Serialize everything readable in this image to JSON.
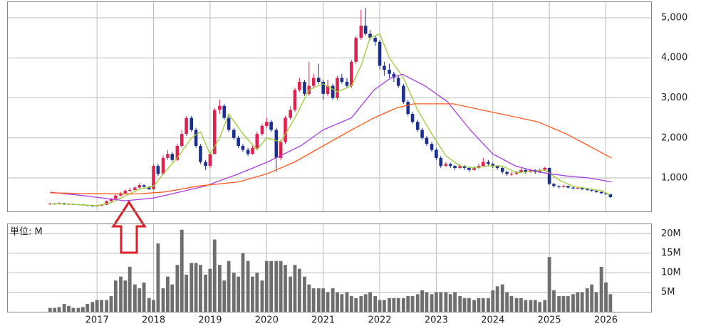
{
  "chart_data": [
    {
      "type": "candlestick",
      "xlim": [
        2015.41,
        2026.8
      ],
      "xticks": [
        2017,
        2018,
        2019,
        2020,
        2021,
        2022,
        2023,
        2024,
        2025,
        2026
      ],
      "ylim": [
        165,
        5408
      ],
      "yticks": [
        {
          "value": 1000,
          "label": "1,000"
        },
        {
          "value": 2000,
          "label": "2,000"
        },
        {
          "value": 3000,
          "label": "3,000"
        },
        {
          "value": 4000,
          "label": "4,000"
        },
        {
          "value": 5000,
          "label": "5,000"
        }
      ],
      "grid": true,
      "up_color": "#e0204f",
      "down_color": "#1c2f8f",
      "x": [
        2016.17,
        2016.25,
        2016.33,
        2016.42,
        2016.5,
        2016.58,
        2016.67,
        2016.75,
        2016.83,
        2016.92,
        2017.0,
        2017.08,
        2017.17,
        2017.25,
        2017.33,
        2017.42,
        2017.5,
        2017.58,
        2017.67,
        2017.75,
        2017.83,
        2017.92,
        2018.0,
        2018.08,
        2018.17,
        2018.25,
        2018.33,
        2018.42,
        2018.5,
        2018.58,
        2018.67,
        2018.75,
        2018.83,
        2018.92,
        2019.0,
        2019.08,
        2019.17,
        2019.25,
        2019.33,
        2019.42,
        2019.5,
        2019.58,
        2019.67,
        2019.75,
        2019.83,
        2019.92,
        2020.0,
        2020.08,
        2020.17,
        2020.25,
        2020.33,
        2020.42,
        2020.5,
        2020.58,
        2020.67,
        2020.75,
        2020.83,
        2020.92,
        2021.0,
        2021.08,
        2021.17,
        2021.25,
        2021.33,
        2021.42,
        2021.5,
        2021.58,
        2021.67,
        2021.75,
        2021.83,
        2021.92,
        2022.0,
        2022.08,
        2022.17,
        2022.25,
        2022.33,
        2022.42,
        2022.5,
        2022.58,
        2022.67,
        2022.75,
        2022.83,
        2022.92,
        2023.0,
        2023.08,
        2023.17,
        2023.25,
        2023.33,
        2023.42,
        2023.5,
        2023.58,
        2023.67,
        2023.75,
        2023.83,
        2023.92,
        2024.0,
        2024.08,
        2024.17,
        2024.25,
        2024.33,
        2024.42,
        2024.5,
        2024.58,
        2024.67,
        2024.75,
        2024.83,
        2024.92,
        2025.0,
        2025.08,
        2025.17,
        2025.25,
        2025.33,
        2025.42,
        2025.5,
        2025.58,
        2025.67,
        2025.75,
        2025.83,
        2025.92,
        2026.0,
        2026.08
      ],
      "ohlc": [
        [
          350,
          380,
          330,
          360
        ],
        [
          360,
          375,
          335,
          350
        ],
        [
          350,
          390,
          345,
          370
        ],
        [
          370,
          375,
          330,
          340
        ],
        [
          340,
          365,
          330,
          350
        ],
        [
          350,
          355,
          320,
          330
        ],
        [
          330,
          350,
          320,
          340
        ],
        [
          340,
          345,
          310,
          320
        ],
        [
          320,
          330,
          300,
          310
        ],
        [
          310,
          315,
          285,
          300
        ],
        [
          300,
          320,
          290,
          310
        ],
        [
          310,
          345,
          300,
          330
        ],
        [
          330,
          440,
          325,
          420
        ],
        [
          420,
          500,
          400,
          480
        ],
        [
          480,
          580,
          470,
          560
        ],
        [
          560,
          650,
          540,
          620
        ],
        [
          620,
          710,
          600,
          680
        ],
        [
          680,
          760,
          650,
          700
        ],
        [
          700,
          800,
          690,
          760
        ],
        [
          760,
          870,
          740,
          820
        ],
        [
          820,
          840,
          760,
          780
        ],
        [
          780,
          800,
          700,
          720
        ],
        [
          720,
          1350,
          710,
          1300
        ],
        [
          1300,
          1350,
          1050,
          1100
        ],
        [
          1100,
          1560,
          1080,
          1500
        ],
        [
          1500,
          1700,
          1450,
          1600
        ],
        [
          1600,
          1650,
          1400,
          1450
        ],
        [
          1450,
          1850,
          1420,
          1800
        ],
        [
          1800,
          2200,
          1750,
          2100
        ],
        [
          2100,
          2550,
          2050,
          2500
        ],
        [
          2500,
          2550,
          2150,
          2200
        ],
        [
          2200,
          2250,
          1750,
          1800
        ],
        [
          1800,
          1850,
          1350,
          1400
        ],
        [
          1400,
          1450,
          1200,
          1300
        ],
        [
          1300,
          1650,
          1250,
          1600
        ],
        [
          1600,
          2750,
          1580,
          2700
        ],
        [
          2700,
          2950,
          2600,
          2800
        ],
        [
          2800,
          2850,
          2450,
          2500
        ],
        [
          2500,
          2550,
          2150,
          2200
        ],
        [
          2200,
          2250,
          1950,
          2000
        ],
        [
          2000,
          2050,
          1750,
          1800
        ],
        [
          1800,
          1850,
          1650,
          1700
        ],
        [
          1700,
          1750,
          1550,
          1600
        ],
        [
          1600,
          1800,
          1580,
          1750
        ],
        [
          1750,
          2150,
          1720,
          2100
        ],
        [
          2100,
          2350,
          2050,
          2300
        ],
        [
          2300,
          2500,
          2250,
          2400
        ],
        [
          2400,
          2450,
          2150,
          2200
        ],
        [
          2200,
          2250,
          1150,
          1500
        ],
        [
          1500,
          1950,
          1450,
          1900
        ],
        [
          1900,
          2550,
          1850,
          2500
        ],
        [
          2500,
          2800,
          2450,
          2700
        ],
        [
          2700,
          3250,
          2650,
          3200
        ],
        [
          3200,
          3500,
          3150,
          3400
        ],
        [
          3400,
          3450,
          3050,
          3100
        ],
        [
          3100,
          3900,
          3050,
          3300
        ],
        [
          3300,
          3600,
          3250,
          3500
        ],
        [
          3500,
          3850,
          3350,
          3400
        ],
        [
          3400,
          3450,
          2950,
          3100
        ],
        [
          3100,
          3450,
          3050,
          3300
        ],
        [
          3300,
          3350,
          2950,
          3000
        ],
        [
          3000,
          3550,
          2950,
          3500
        ],
        [
          3500,
          3600,
          3350,
          3400
        ],
        [
          3400,
          3500,
          3250,
          3300
        ],
        [
          3300,
          3950,
          3250,
          3900
        ],
        [
          3900,
          4550,
          3850,
          4500
        ],
        [
          4500,
          5200,
          4450,
          4800
        ],
        [
          4800,
          5250,
          4550,
          4600
        ],
        [
          4600,
          4700,
          4450,
          4500
        ],
        [
          4500,
          4550,
          4300,
          4400
        ],
        [
          4400,
          4450,
          3700,
          3800
        ],
        [
          3800,
          3900,
          3550,
          3700
        ],
        [
          3700,
          3850,
          3500,
          3600
        ],
        [
          3600,
          3650,
          3400,
          3500
        ],
        [
          3500,
          3550,
          3250,
          3300
        ],
        [
          3300,
          3350,
          2850,
          2900
        ],
        [
          2900,
          2950,
          2550,
          2600
        ],
        [
          2600,
          2650,
          2350,
          2400
        ],
        [
          2400,
          2450,
          2150,
          2200
        ],
        [
          2200,
          2250,
          1950,
          2000
        ],
        [
          2000,
          2050,
          1800,
          1850
        ],
        [
          1850,
          1900,
          1650,
          1700
        ],
        [
          1700,
          1750,
          1450,
          1500
        ],
        [
          1500,
          1550,
          1250,
          1300
        ],
        [
          1300,
          1400,
          1280,
          1350
        ],
        [
          1350,
          1380,
          1250,
          1300
        ],
        [
          1300,
          1320,
          1200,
          1250
        ],
        [
          1250,
          1350,
          1230,
          1300
        ],
        [
          1300,
          1320,
          1200,
          1250
        ],
        [
          1250,
          1280,
          1150,
          1200
        ],
        [
          1200,
          1300,
          1180,
          1250
        ],
        [
          1250,
          1350,
          1230,
          1300
        ],
        [
          1300,
          1500,
          1280,
          1400
        ],
        [
          1400,
          1450,
          1300,
          1350
        ],
        [
          1350,
          1380,
          1250,
          1300
        ],
        [
          1300,
          1320,
          1200,
          1250
        ],
        [
          1250,
          1280,
          1100,
          1150
        ],
        [
          1150,
          1180,
          1050,
          1100
        ],
        [
          1100,
          1150,
          1050,
          1100
        ],
        [
          1100,
          1180,
          1080,
          1150
        ],
        [
          1150,
          1250,
          1130,
          1200
        ],
        [
          1200,
          1220,
          1100,
          1150
        ],
        [
          1150,
          1230,
          1130,
          1200
        ],
        [
          1200,
          1220,
          1100,
          1150
        ],
        [
          1150,
          1230,
          1130,
          1200
        ],
        [
          1200,
          1280,
          1180,
          1250
        ],
        [
          1250,
          1260,
          820,
          850
        ],
        [
          850,
          880,
          760,
          800
        ],
        [
          800,
          820,
          740,
          780
        ],
        [
          780,
          830,
          760,
          800
        ],
        [
          800,
          810,
          740,
          760
        ],
        [
          760,
          780,
          720,
          740
        ],
        [
          740,
          770,
          730,
          750
        ],
        [
          750,
          760,
          700,
          720
        ],
        [
          720,
          730,
          680,
          700
        ],
        [
          700,
          710,
          660,
          680
        ],
        [
          680,
          690,
          630,
          650
        ],
        [
          650,
          660,
          600,
          620
        ],
        [
          620,
          630,
          580,
          600
        ],
        [
          600,
          610,
          500,
          520
        ]
      ],
      "series": [
        {
          "color": "#9acd32",
          "x": [
            2016.17,
            2016.5,
            2016.83,
            2017.0,
            2017.25,
            2017.5,
            2017.75,
            2018.0,
            2018.17,
            2018.42,
            2018.67,
            2018.83,
            2019.0,
            2019.17,
            2019.33,
            2019.58,
            2019.83,
            2020.0,
            2020.25,
            2020.5,
            2020.75,
            2021.0,
            2021.25,
            2021.5,
            2021.67,
            2021.83,
            2022.0,
            2022.17,
            2022.42,
            2022.67,
            2022.92,
            2023.17,
            2023.42,
            2023.67,
            2023.92,
            2024.17,
            2024.42,
            2024.67,
            2024.92,
            2025.17,
            2025.42,
            2025.67,
            2025.92,
            2026.08
          ],
          "values": [
            350,
            350,
            320,
            310,
            380,
            550,
            720,
            790,
            1100,
            1500,
            2000,
            2150,
            1600,
            2000,
            2600,
            2100,
            1700,
            2000,
            1900,
            2500,
            3200,
            3350,
            3150,
            3300,
            3800,
            4500,
            4600,
            4000,
            3500,
            2700,
            2100,
            1550,
            1300,
            1250,
            1300,
            1300,
            1130,
            1160,
            1200,
            950,
            790,
            740,
            680,
            580
          ]
        },
        {
          "color": "#a93ee0",
          "x": [
            2016.17,
            2016.75,
            2017.5,
            2018.0,
            2018.9,
            2019.5,
            2020.0,
            2020.6,
            2021.0,
            2021.5,
            2021.9,
            2022.2,
            2022.4,
            2022.8,
            2023.2,
            2023.6,
            2024.0,
            2024.4,
            2024.8,
            2025.3,
            2025.7,
            2026.1
          ],
          "values": [
            645,
            560,
            430,
            500,
            790,
            1100,
            1390,
            1800,
            2200,
            2500,
            3200,
            3500,
            3590,
            3300,
            2900,
            2200,
            1600,
            1300,
            1150,
            1050,
            1000,
            900
          ]
        },
        {
          "color": "#ff5a1f",
          "x": [
            2016.17,
            2016.75,
            2017.7,
            2018.2,
            2018.8,
            2019.5,
            2020.0,
            2020.5,
            2021.0,
            2021.5,
            2021.9,
            2022.3,
            2022.6,
            2023.0,
            2023.3,
            2023.8,
            2024.3,
            2024.8,
            2025.3,
            2025.7,
            2026.1
          ],
          "values": [
            630,
            610,
            600,
            650,
            800,
            900,
            1100,
            1400,
            1800,
            2200,
            2500,
            2750,
            2850,
            2850,
            2850,
            2700,
            2550,
            2400,
            2100,
            1800,
            1500
          ]
        }
      ]
    },
    {
      "type": "bar",
      "unit_label": "単位: M",
      "color": "#6e6e6e",
      "xlim": [
        2015.41,
        2026.8
      ],
      "xticks": [
        2017,
        2018,
        2019,
        2020,
        2021,
        2022,
        2023,
        2024,
        2025,
        2026
      ],
      "ylim": [
        0,
        22.6
      ],
      "yticks": [
        {
          "value": 5,
          "label": "5M"
        },
        {
          "value": 10,
          "label": "10M"
        },
        {
          "value": 15,
          "label": "15M"
        },
        {
          "value": 20,
          "label": "20M"
        }
      ],
      "grid": true,
      "values": [
        1,
        1,
        1.2,
        2,
        1.5,
        1,
        1,
        1.2,
        2,
        2.5,
        3,
        3,
        3,
        4,
        8,
        9,
        8,
        11.5,
        7,
        6,
        7.5,
        3.5,
        3,
        17.5,
        6,
        9,
        7,
        12,
        21,
        9.5,
        12.5,
        12.5,
        12,
        9.5,
        11,
        18.5,
        12,
        8,
        13,
        10,
        9,
        15,
        13,
        9,
        10,
        8,
        13,
        13,
        13,
        13,
        12,
        9,
        12,
        11,
        9,
        7,
        6,
        6,
        6,
        5,
        6,
        5,
        4.5,
        5,
        4,
        3.5,
        4,
        4.5,
        5,
        4,
        3,
        3,
        3.5,
        3.5,
        3.5,
        3.5,
        4,
        4,
        4.5,
        5.5,
        5,
        4.5,
        5,
        5,
        5,
        4.5,
        5,
        4,
        3.5,
        3.5,
        3,
        3.5,
        3.5,
        3.5,
        5.5,
        6.5,
        7,
        5,
        4,
        3.5,
        3.5,
        3,
        3,
        3,
        2.5,
        3,
        14,
        5.5,
        4,
        4,
        4,
        4.5,
        5,
        5,
        6,
        7,
        5,
        11.5,
        7.5,
        4.5
      ]
    }
  ]
}
